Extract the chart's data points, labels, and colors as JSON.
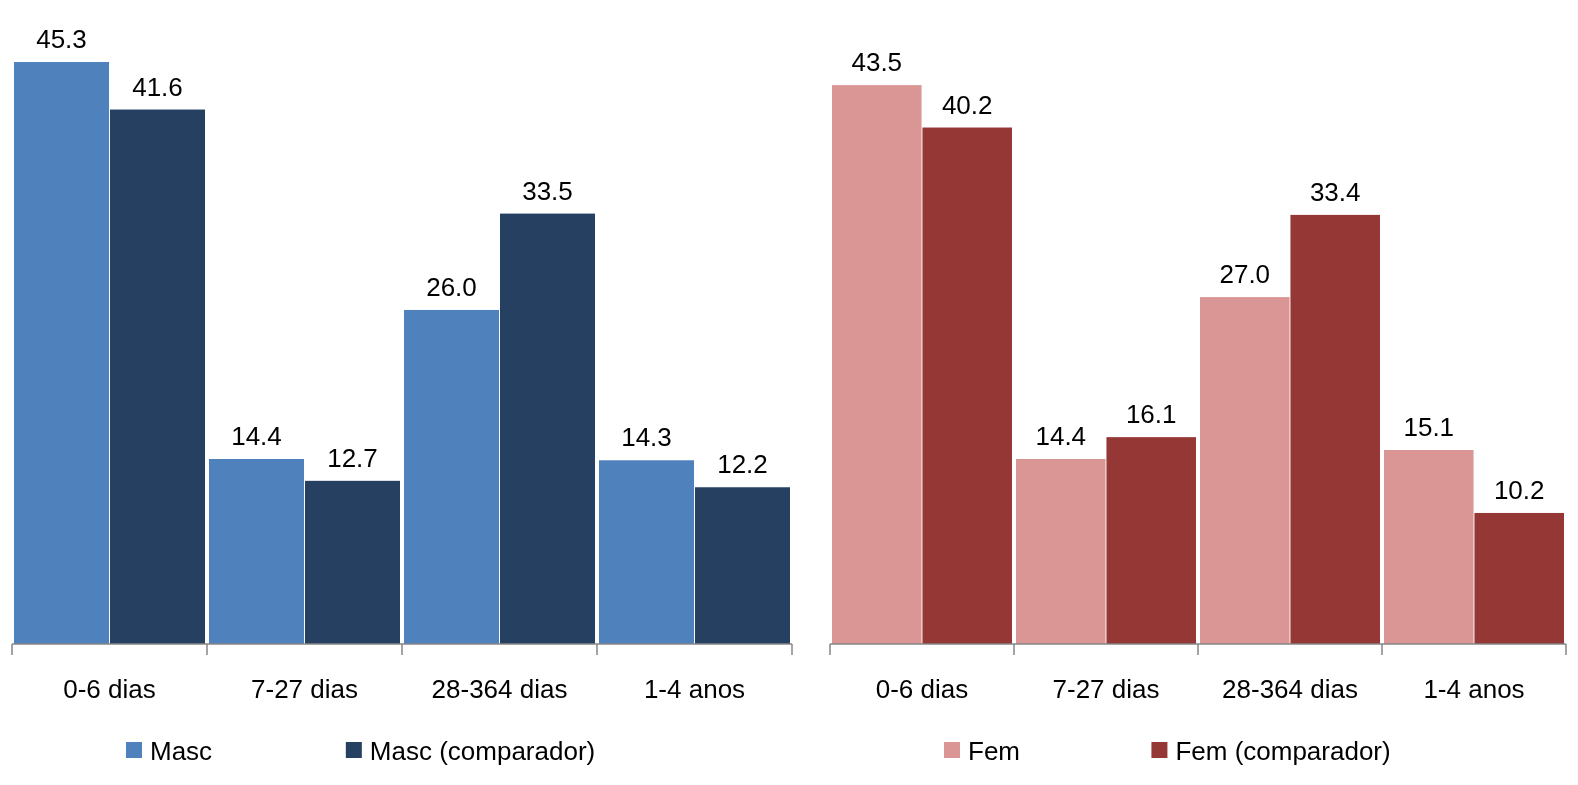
{
  "chart_data": [
    {
      "type": "bar",
      "categories": [
        "0-6 dias",
        "7-27 dias",
        "28-364 dias",
        "1-4 anos"
      ],
      "legend": "bottom",
      "grid": false,
      "tick_labels": "x",
      "series": [
        {
          "name": "Masc",
          "color": "#4f81bd",
          "values": [
            45.3,
            14.4,
            26.0,
            14.3
          ],
          "value_labels": [
            "45.3",
            "14.4",
            "26.0",
            "14.3"
          ]
        },
        {
          "name": "Masc (comparador)",
          "color": "#254061",
          "values": [
            41.6,
            12.7,
            33.5,
            12.2
          ],
          "value_labels": [
            "41.6",
            "12.7",
            "33.5",
            "12.2"
          ]
        }
      ]
    },
    {
      "type": "bar",
      "categories": [
        "0-6 dias",
        "7-27 dias",
        "28-364 dias",
        "1-4 anos"
      ],
      "legend": "bottom",
      "grid": false,
      "tick_labels": "x",
      "series": [
        {
          "name": "Fem",
          "color": "#d99694",
          "values": [
            43.5,
            14.4,
            27.0,
            15.1
          ],
          "value_labels": [
            "43.5",
            "14.4",
            "27.0",
            "15.1"
          ]
        },
        {
          "name": "Fem (comparador)",
          "color": "#953735",
          "values": [
            40.2,
            16.1,
            33.4,
            10.2
          ],
          "value_labels": [
            "40.2",
            "16.1",
            "33.4",
            "10.2"
          ]
        }
      ]
    }
  ]
}
